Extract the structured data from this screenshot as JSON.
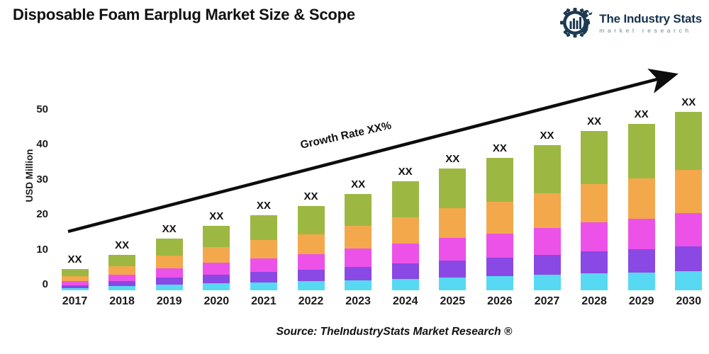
{
  "header": {
    "title": "Disposable Foam Earplug Market Size & Scope",
    "logo": {
      "name": "The Industry Stats",
      "subtitle": "market research",
      "navy": "#1d3a52",
      "subtitle_color": "#6d8794"
    }
  },
  "chart_data": {
    "type": "bar",
    "stacked": true,
    "title": "Disposable Foam Earplug Market Size & Scope",
    "ylabel": "USD Million",
    "yticks": [
      0,
      10,
      20,
      30,
      40,
      50
    ],
    "ylim": [
      0,
      55
    ],
    "grid": false,
    "legend_position": "none",
    "categories": [
      "2017",
      "2018",
      "2019",
      "2020",
      "2021",
      "2022",
      "2023",
      "2024",
      "2025",
      "2026",
      "2027",
      "2028",
      "2029",
      "2030"
    ],
    "bar_value_label": "XX",
    "growth_label": "Growth Rate XX%",
    "totals_estimated": [
      6,
      10,
      14.5,
      18,
      21,
      23.5,
      27,
      30.5,
      34,
      37,
      40.5,
      44.5,
      46.5,
      50
    ],
    "series": [
      {
        "name": "segment-1-cyan",
        "color": "#57d9f3",
        "values": [
          0.6,
          1.1,
          1.5,
          1.9,
          2.2,
          2.5,
          2.8,
          3.2,
          3.6,
          3.9,
          4.3,
          4.7,
          4.9,
          5.3
        ]
      },
      {
        "name": "segment-2-purple",
        "color": "#8a48e4",
        "values": [
          0.8,
          1.4,
          2.0,
          2.5,
          2.9,
          3.3,
          3.8,
          4.3,
          4.8,
          5.2,
          5.7,
          6.2,
          6.5,
          7.0
        ]
      },
      {
        "name": "segment-3-magenta",
        "color": "#ec52e8",
        "values": [
          1.1,
          1.9,
          2.7,
          3.3,
          3.9,
          4.3,
          5.0,
          5.6,
          6.3,
          6.8,
          7.5,
          8.2,
          8.6,
          9.3
        ]
      },
      {
        "name": "segment-4-orange",
        "color": "#f4a84c",
        "values": [
          1.4,
          2.4,
          3.5,
          4.3,
          5.0,
          5.6,
          6.5,
          7.3,
          8.2,
          8.9,
          9.7,
          10.7,
          11.2,
          12.0
        ]
      },
      {
        "name": "segment-5-green",
        "color": "#9cb843",
        "values": [
          2.1,
          3.2,
          4.8,
          6.0,
          7.0,
          7.8,
          8.9,
          10.1,
          11.2,
          12.2,
          13.3,
          14.7,
          15.3,
          16.4
        ]
      }
    ]
  },
  "footer": {
    "source": "Source: TheIndustryStats Market Research ®"
  }
}
